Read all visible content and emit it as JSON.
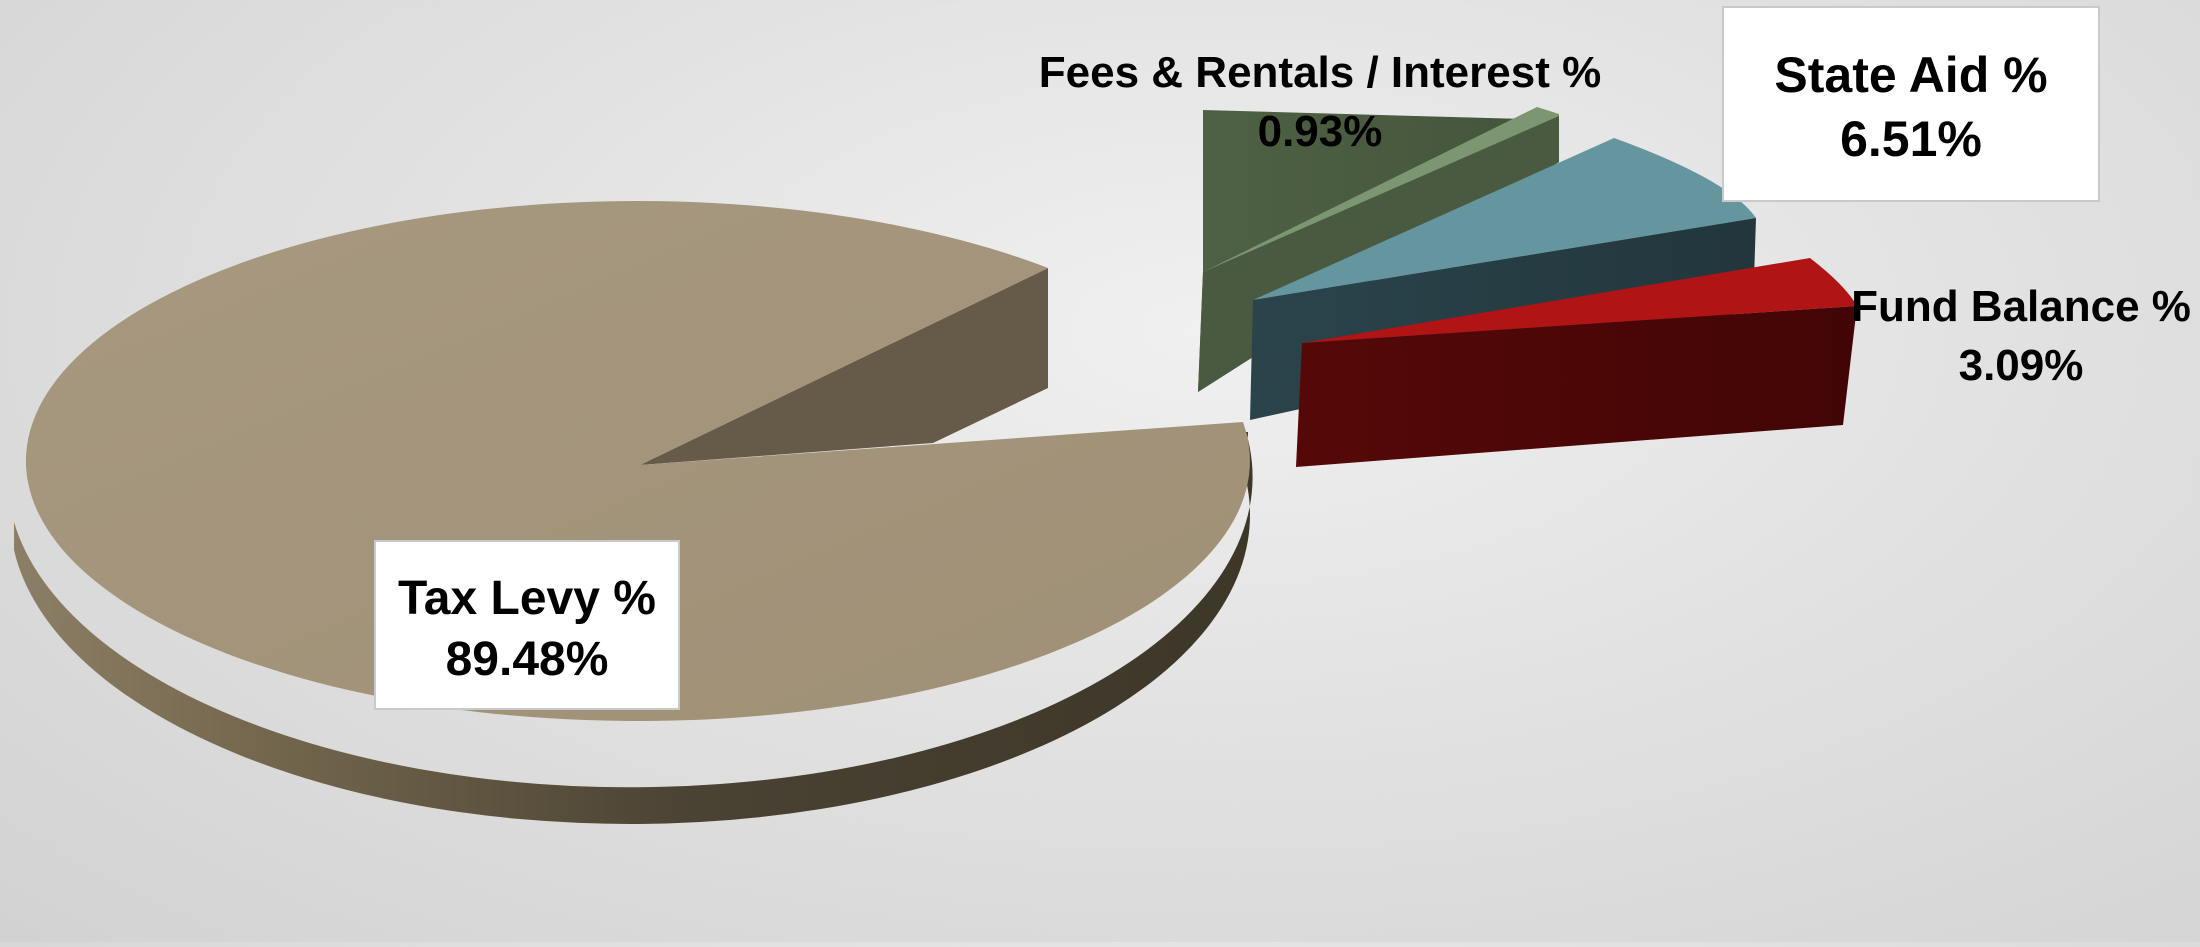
{
  "chart_data": {
    "type": "pie",
    "style": "3d-exploded",
    "legend": "none",
    "slices": [
      {
        "label": "Tax Levy %",
        "value": 89.48,
        "value_text": "89.48%",
        "color": "#A39378",
        "side_color": "#4A4233"
      },
      {
        "label": "Fees & Rentals / Interest %",
        "value": 0.93,
        "value_text": "0.93%",
        "color": "#7B9670",
        "side_color": "#4A5A40"
      },
      {
        "label": "State Aid %",
        "value": 6.51,
        "value_text": "6.51%",
        "color": "#6596A0",
        "side_color": "#263B42"
      },
      {
        "label": "Fund Balance %",
        "value": 3.09,
        "value_text": "3.09%",
        "color": "#B01414",
        "side_color": "#4A0606"
      }
    ]
  }
}
